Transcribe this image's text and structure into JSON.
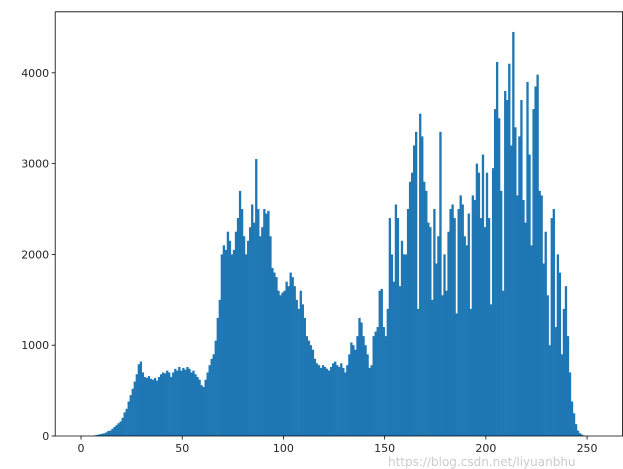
{
  "chart_data": {
    "type": "bar",
    "title": "",
    "xlabel": "",
    "ylabel": "",
    "xlim": [
      -12.75,
      267.75
    ],
    "ylim": [
      0,
      4672
    ],
    "grid": false,
    "bar_color": "#1f77b4",
    "x_ticks": [
      0,
      50,
      100,
      150,
      200,
      250
    ],
    "y_ticks": [
      0,
      1000,
      2000,
      3000,
      4000
    ],
    "bin_start": 0,
    "bin_width": 1,
    "values": [
      0,
      0,
      0,
      0,
      0,
      0,
      5,
      10,
      15,
      20,
      25,
      30,
      40,
      55,
      60,
      80,
      100,
      120,
      140,
      160,
      200,
      260,
      300,
      380,
      450,
      520,
      600,
      680,
      790,
      820,
      700,
      650,
      640,
      660,
      630,
      620,
      640,
      610,
      650,
      680,
      700,
      690,
      720,
      700,
      650,
      700,
      740,
      720,
      760,
      720,
      750,
      730,
      760,
      740,
      700,
      720,
      680,
      650,
      620,
      560,
      540,
      620,
      700,
      780,
      850,
      900,
      1050,
      1300,
      1500,
      2000,
      2100,
      2050,
      2250,
      2150,
      2000,
      2050,
      2250,
      2400,
      2700,
      2500,
      2200,
      2000,
      2150,
      2300,
      2550,
      2350,
      3050,
      2500,
      2200,
      2300,
      2500,
      2450,
      2480,
      2200,
      1850,
      1800,
      1750,
      1600,
      1550,
      1580,
      1600,
      1700,
      1650,
      1800,
      1750,
      1650,
      1500,
      1400,
      1600,
      1450,
      1300,
      1100,
      1050,
      1000,
      950,
      850,
      800,
      780,
      750,
      780,
      760,
      740,
      720,
      760,
      800,
      820,
      780,
      760,
      800,
      750,
      700,
      780,
      900,
      1030,
      1000,
      950,
      1100,
      1300,
      1250,
      1100,
      1000,
      900,
      750,
      780,
      1100,
      1150,
      1200,
      1600,
      1620,
      1200,
      1100,
      1400,
      2400,
      2000,
      1700,
      2550,
      2400,
      1650,
      2150,
      2000,
      2000,
      2500,
      2800,
      2900,
      3200,
      3350,
      1400,
      3550,
      3300,
      2800,
      2700,
      2350,
      2300,
      1500,
      2500,
      1900,
      2200,
      3350,
      1550,
      2000,
      1600,
      2250,
      2500,
      2550,
      2400,
      1350,
      2500,
      2650,
      2550,
      2200,
      2100,
      2450,
      1400,
      2650,
      2600,
      3000,
      2900,
      2400,
      3100,
      2300,
      2900,
      2400,
      1450,
      2950,
      3600,
      4120,
      3500,
      2700,
      1600,
      3800,
      3700,
      4100,
      3200,
      4450,
      3400,
      2650,
      3300,
      3700,
      2600,
      2350,
      3900,
      3100,
      2100,
      3600,
      3850,
      3980,
      2700,
      2650,
      1900,
      2250,
      1550,
      1000,
      2400,
      2500,
      1200,
      2000,
      1800,
      900,
      1400,
      1650,
      1100,
      700,
      380,
      250,
      130,
      60,
      30,
      15,
      5,
      2,
      1,
      0,
      0,
      0,
      0,
      0
    ]
  },
  "watermark": "https://blog.csdn.net/liyuanbhu"
}
